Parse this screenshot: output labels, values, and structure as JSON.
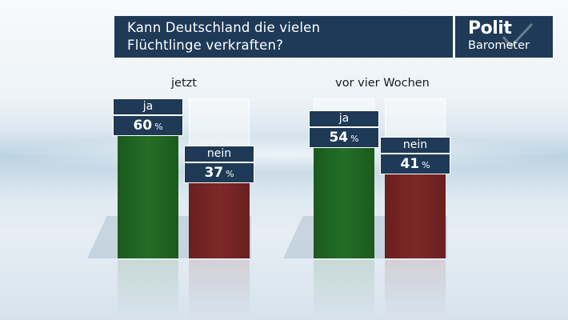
{
  "title_lines": [
    "Kann Deutschland die vielen",
    "Flüchtlinge verkraften?"
  ],
  "logo": {
    "top": "Polit",
    "bottom": "Barometer"
  },
  "colors": {
    "panel": "#1e3a57",
    "ja": "#246d27",
    "nein": "#7d2828"
  },
  "chart_data": {
    "type": "bar",
    "groups": [
      "jetzt",
      "vor vier Wochen"
    ],
    "categories": [
      "ja",
      "nein"
    ],
    "series": [
      {
        "group": "jetzt",
        "values": [
          60,
          37
        ]
      },
      {
        "group": "vor vier Wochen",
        "values": [
          54,
          41
        ]
      }
    ],
    "unit": "%",
    "ylim": [
      0,
      100
    ]
  }
}
